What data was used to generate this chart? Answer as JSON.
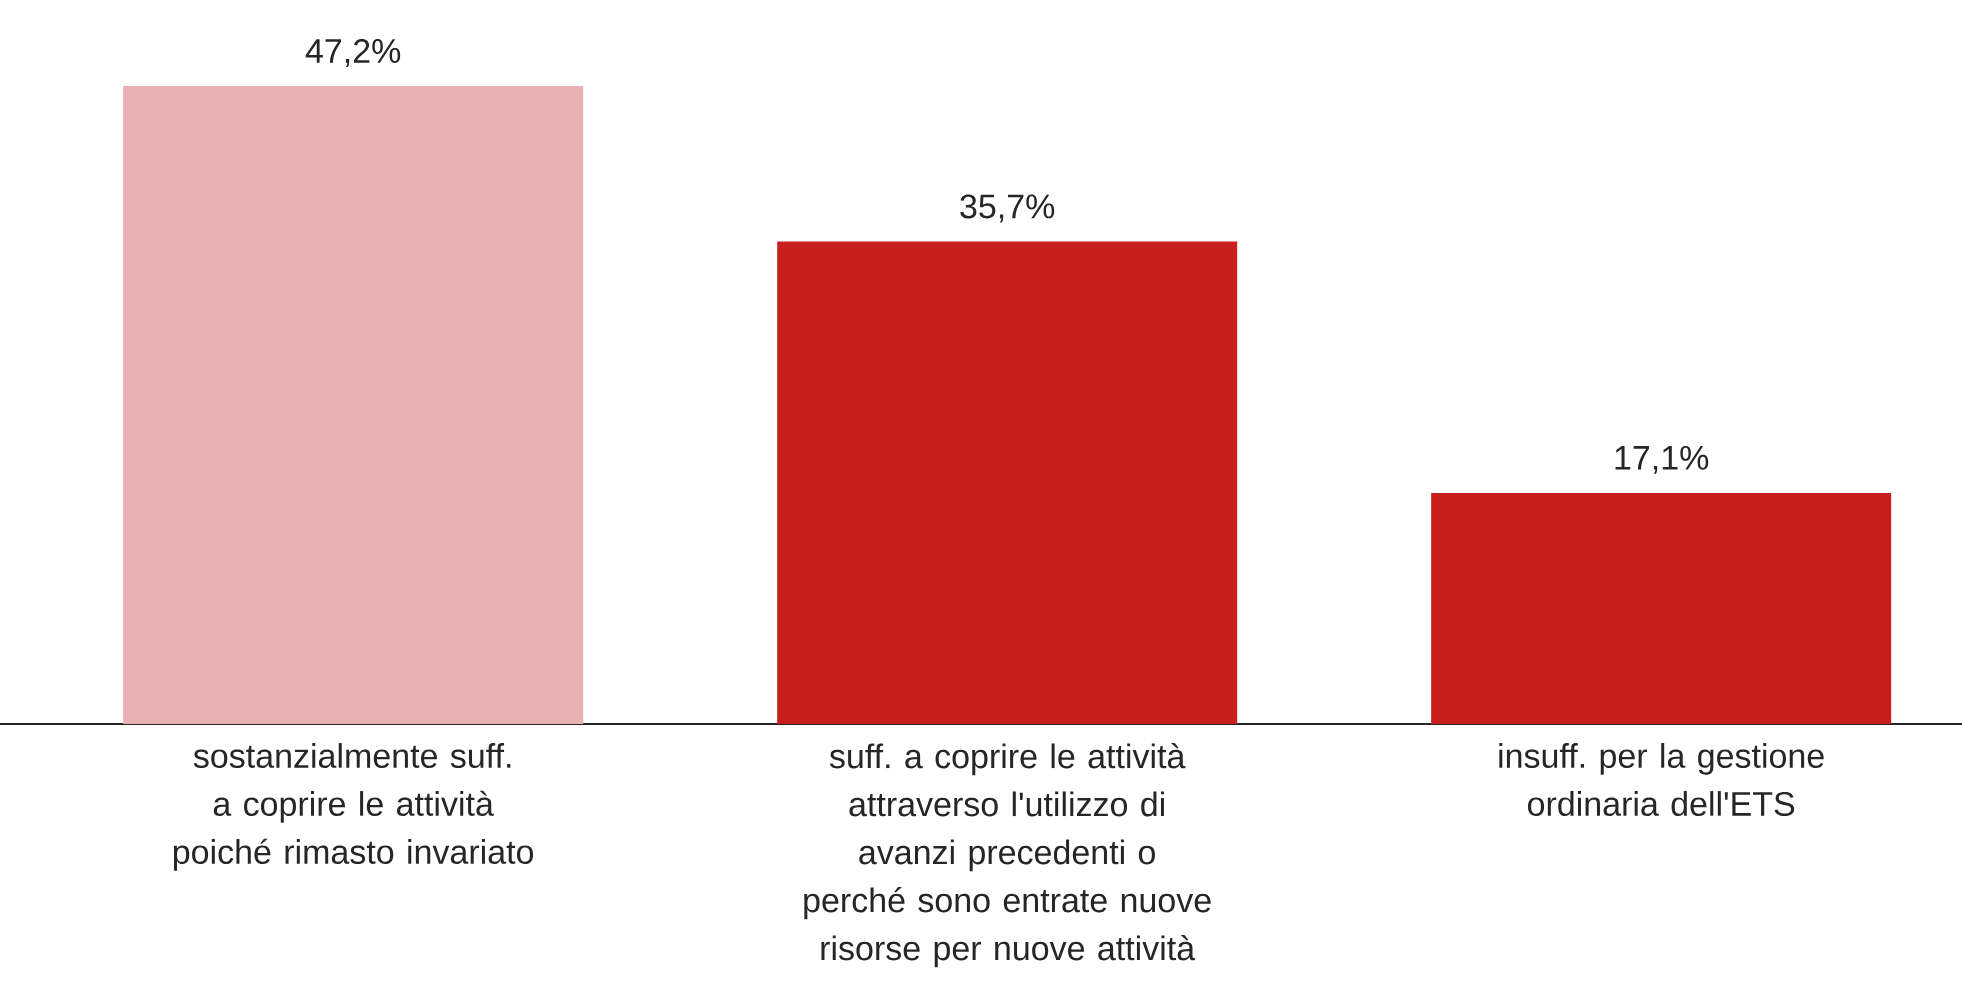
{
  "chart_data": {
    "type": "bar",
    "categories": [
      "sostanzialmente suff. a coprire le attività poiché rimasto invariato",
      "suff. a coprire le attività attraverso l'utilizzo di avanzi precedenti o perché sono entrate nuove risorse per nuove attività",
      "insuff. per la gestione ordinaria dell'ETS"
    ],
    "values": [
      47.2,
      35.7,
      17.1
    ],
    "colors": [
      "#e8b0b1",
      "#c81e1e",
      "#c81e1e"
    ],
    "value_labels": [
      "47,2%",
      "35,7%",
      "17,1%"
    ]
  }
}
